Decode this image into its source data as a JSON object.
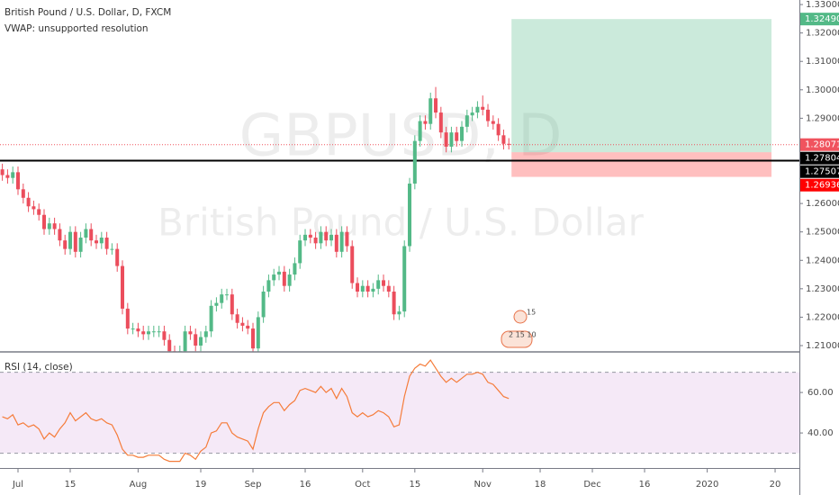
{
  "chart_data": {
    "type": "candlestick",
    "title": "British Pound / U.S. Dollar, D, FXCM",
    "indicator_note": "VWAP: unsupported resolution",
    "watermark": {
      "symbol": "GBPUSD, D",
      "name": "British Pound / U.S. Dollar"
    },
    "up_color": "#53b987",
    "down_color": "#eb4d5c",
    "open": [
      1.272,
      1.27,
      1.269,
      1.271,
      1.265,
      1.262,
      1.259,
      1.258,
      1.256,
      1.251,
      1.253,
      1.251,
      1.247,
      1.244,
      1.25,
      1.243,
      1.248,
      1.251,
      1.247,
      1.246,
      1.248,
      1.244,
      1.244,
      1.238,
      1.223,
      1.216,
      1.216,
      1.215,
      1.214,
      1.215,
      1.215,
      1.215,
      1.212,
      1.208,
      1.207,
      1.208,
      1.215,
      1.214,
      1.21,
      1.213,
      1.215,
      1.224,
      1.225,
      1.228,
      1.228,
      1.221,
      1.218,
      1.217,
      1.216,
      1.209,
      1.22,
      1.229,
      1.233,
      1.235,
      1.236,
      1.231,
      1.235,
      1.239,
      1.247,
      1.249,
      1.248,
      1.246,
      1.25,
      1.247,
      1.249,
      1.243,
      1.25,
      1.245,
      1.232,
      1.229,
      1.231,
      1.229,
      1.23,
      1.233,
      1.231,
      1.229,
      1.221,
      1.222,
      1.245,
      1.267,
      1.282,
      1.289,
      1.288,
      1.297,
      1.292,
      1.285,
      1.28,
      1.285,
      1.282,
      1.287,
      1.291,
      1.292,
      1.294,
      1.293,
      1.289,
      1.288,
      1.284,
      1.281
    ],
    "high": [
      1.274,
      1.272,
      1.273,
      1.273,
      1.267,
      1.264,
      1.261,
      1.26,
      1.258,
      1.255,
      1.255,
      1.253,
      1.249,
      1.252,
      1.252,
      1.25,
      1.253,
      1.253,
      1.249,
      1.25,
      1.25,
      1.246,
      1.246,
      1.24,
      1.225,
      1.218,
      1.218,
      1.217,
      1.217,
      1.217,
      1.217,
      1.217,
      1.214,
      1.21,
      1.21,
      1.217,
      1.217,
      1.216,
      1.215,
      1.217,
      1.226,
      1.227,
      1.23,
      1.23,
      1.23,
      1.223,
      1.22,
      1.219,
      1.218,
      1.222,
      1.231,
      1.235,
      1.237,
      1.238,
      1.238,
      1.237,
      1.241,
      1.249,
      1.251,
      1.251,
      1.25,
      1.252,
      1.252,
      1.251,
      1.251,
      1.252,
      1.252,
      1.247,
      1.234,
      1.233,
      1.233,
      1.232,
      1.235,
      1.235,
      1.233,
      1.231,
      1.224,
      1.247,
      1.269,
      1.284,
      1.291,
      1.291,
      1.299,
      1.301,
      1.294,
      1.287,
      1.287,
      1.287,
      1.289,
      1.293,
      1.294,
      1.296,
      1.298,
      1.295,
      1.291,
      1.29,
      1.286,
      1.283
    ],
    "low": [
      1.268,
      1.267,
      1.267,
      1.263,
      1.26,
      1.257,
      1.256,
      1.254,
      1.249,
      1.249,
      1.249,
      1.245,
      1.242,
      1.242,
      1.241,
      1.241,
      1.246,
      1.245,
      1.244,
      1.244,
      1.242,
      1.242,
      1.236,
      1.221,
      1.214,
      1.214,
      1.213,
      1.212,
      1.212,
      1.213,
      1.213,
      1.21,
      1.206,
      1.205,
      1.205,
      1.206,
      1.212,
      1.208,
      1.208,
      1.211,
      1.213,
      1.222,
      1.223,
      1.226,
      1.219,
      1.216,
      1.215,
      1.214,
      1.206,
      1.207,
      1.218,
      1.227,
      1.231,
      1.233,
      1.229,
      1.229,
      1.233,
      1.237,
      1.245,
      1.246,
      1.244,
      1.244,
      1.245,
      1.245,
      1.241,
      1.241,
      1.243,
      1.23,
      1.227,
      1.227,
      1.227,
      1.227,
      1.228,
      1.229,
      1.227,
      1.219,
      1.219,
      1.22,
      1.243,
      1.265,
      1.28,
      1.286,
      1.286,
      1.29,
      1.283,
      1.278,
      1.278,
      1.28,
      1.28,
      1.285,
      1.289,
      1.29,
      1.291,
      1.287,
      1.286,
      1.282,
      1.279,
      1.279
    ],
    "close": [
      1.27,
      1.269,
      1.271,
      1.265,
      1.262,
      1.259,
      1.258,
      1.256,
      1.251,
      1.253,
      1.251,
      1.247,
      1.244,
      1.25,
      1.243,
      1.248,
      1.251,
      1.247,
      1.246,
      1.248,
      1.244,
      1.244,
      1.238,
      1.223,
      1.216,
      1.216,
      1.215,
      1.214,
      1.215,
      1.215,
      1.215,
      1.212,
      1.208,
      1.207,
      1.208,
      1.215,
      1.214,
      1.21,
      1.213,
      1.215,
      1.224,
      1.225,
      1.228,
      1.228,
      1.221,
      1.218,
      1.217,
      1.216,
      1.209,
      1.22,
      1.229,
      1.233,
      1.235,
      1.236,
      1.231,
      1.235,
      1.239,
      1.247,
      1.249,
      1.248,
      1.246,
      1.25,
      1.247,
      1.249,
      1.243,
      1.25,
      1.245,
      1.232,
      1.229,
      1.231,
      1.229,
      1.23,
      1.233,
      1.231,
      1.229,
      1.221,
      1.222,
      1.245,
      1.267,
      1.282,
      1.289,
      1.288,
      1.297,
      1.292,
      1.285,
      1.28,
      1.285,
      1.282,
      1.287,
      1.291,
      1.292,
      1.294,
      1.293,
      1.289,
      1.288,
      1.284,
      1.281,
      1.28071
    ],
    "xlim": [
      -0.45,
      152.65
    ],
    "xticks": [
      {
        "value": 3,
        "label": "Jul"
      },
      {
        "value": 13,
        "label": "15"
      },
      {
        "value": 26,
        "label": "Aug"
      },
      {
        "value": 38,
        "label": "19"
      },
      {
        "value": 48,
        "label": "Sep"
      },
      {
        "value": 58,
        "label": "16"
      },
      {
        "value": 69,
        "label": "Oct"
      },
      {
        "value": 79,
        "label": "15"
      },
      {
        "value": 92,
        "label": "Nov"
      },
      {
        "value": 103,
        "label": "18"
      },
      {
        "value": 113,
        "label": "Dec"
      },
      {
        "value": 123,
        "label": "16"
      },
      {
        "value": 135,
        "label": "2020"
      },
      {
        "value": 148,
        "label": "20"
      }
    ],
    "ylim": [
      1.2081,
      1.3316
    ],
    "yticks": [
      {
        "value": 1.21,
        "label": "1.21000"
      },
      {
        "value": 1.22,
        "label": "1.22000"
      },
      {
        "value": 1.23,
        "label": "1.23000"
      },
      {
        "value": 1.24,
        "label": "1.24000"
      },
      {
        "value": 1.25,
        "label": "1.25000"
      },
      {
        "value": 1.26,
        "label": "1.26000"
      },
      {
        "value": 1.27,
        "label": "1.27000"
      },
      {
        "value": 1.28,
        "label": "1.28000"
      },
      {
        "value": 1.29,
        "label": "1.29000"
      },
      {
        "value": 1.3,
        "label": "1.30000"
      },
      {
        "value": 1.31,
        "label": "1.31000"
      },
      {
        "value": 1.32,
        "label": "1.32000"
      },
      {
        "value": 1.33,
        "label": "1.33000"
      }
    ],
    "last_price": 1.28071,
    "last_price_color": "#f0535e",
    "hline": {
      "value": 1.27507,
      "color": "#000000"
    },
    "position": {
      "target": {
        "value": 1.3249,
        "label": "1.32490"
      },
      "entry": 1.27804,
      "stop": 1.26936,
      "profit_color": "#53b987",
      "loss_color": "#ff0000"
    },
    "events": [
      "15",
      "2 15 10"
    ],
    "rsi": {
      "title": "RSI (14, close)",
      "color": "#f57c3a",
      "values": [
        48,
        47,
        49,
        44,
        45,
        43,
        44,
        42,
        37,
        40,
        38,
        42,
        45,
        50,
        46,
        48,
        50,
        47,
        46,
        47,
        45,
        44,
        39,
        32,
        29,
        29,
        28,
        28,
        29,
        29,
        29,
        27,
        26,
        26,
        26,
        30,
        29,
        27,
        31,
        33,
        40,
        41,
        45,
        45,
        40,
        38,
        37,
        36,
        32,
        42,
        50,
        53,
        55,
        55,
        51,
        54,
        56,
        61,
        62,
        61,
        60,
        63,
        60,
        62,
        57,
        62,
        58,
        50,
        48,
        50,
        48,
        49,
        51,
        50,
        48,
        43,
        44,
        58,
        68,
        72,
        74,
        73,
        76,
        72,
        68,
        65,
        67,
        65,
        67,
        69,
        69,
        70,
        69,
        65,
        64,
        61,
        58,
        57
      ],
      "ylim": [
        22.7,
        79.6
      ],
      "yticks": [
        {
          "value": 40,
          "label": "40.00"
        },
        {
          "value": 60,
          "label": "60.00"
        }
      ],
      "bands": [
        30,
        70
      ],
      "band_color": "#9c27b0"
    }
  }
}
